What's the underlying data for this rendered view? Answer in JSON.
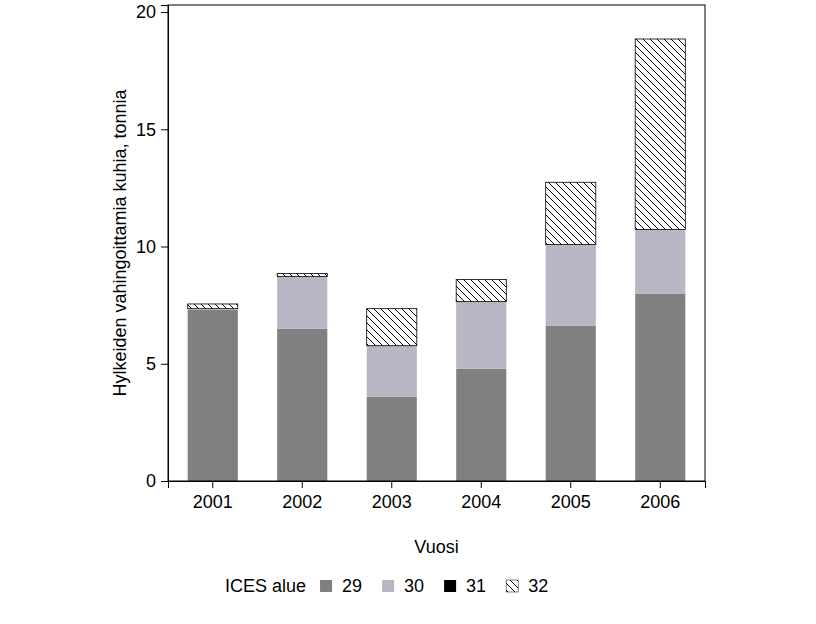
{
  "chart_data": {
    "type": "bar",
    "stacked": true,
    "y_label": "Hylkeiden vahingoittamia kuhia, tonnia",
    "x_label": "Vuosi",
    "legend_title": "ICES alue",
    "legend": "bottom",
    "categories": [
      "2001",
      "2002",
      "2003",
      "2004",
      "2005",
      "2006"
    ],
    "series": [
      {
        "name": "29",
        "color": "#808080",
        "values": [
          7.3,
          6.5,
          3.59,
          4.79,
          6.62,
          7.99
        ]
      },
      {
        "name": "30",
        "color": "#b6b6c4",
        "values": [
          0.05,
          2.22,
          2.18,
          2.86,
          3.47,
          2.74
        ]
      },
      {
        "name": "31",
        "color": "#000000",
        "values": [
          0,
          0,
          0,
          0,
          0,
          0
        ]
      },
      {
        "name": "32",
        "color": "#000000",
        "line_style": "hatch",
        "values": [
          0.2,
          0.13,
          1.58,
          0.94,
          2.65,
          8.12
        ]
      }
    ],
    "ylim": [
      0,
      20.3
    ],
    "yticks": [
      0,
      5,
      10,
      15,
      20
    ],
    "grid": false
  }
}
